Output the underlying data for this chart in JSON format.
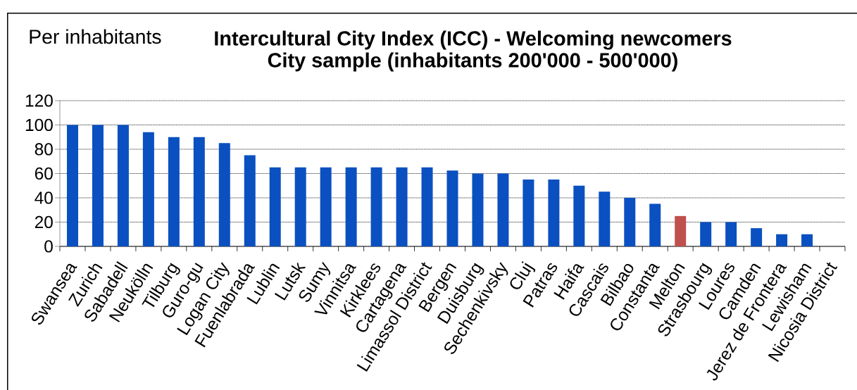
{
  "chart_data": {
    "type": "bar",
    "title": "Intercultural City Index (ICC) - Welcoming newcomers",
    "subtitle": "City sample (inhabitants 200'000 - 500'000)",
    "ylabel": "Per inhabitants",
    "categories": [
      "Swansea",
      "Zurich",
      "Sabadell",
      "Neukölln",
      "Tilburg",
      "Guro-gu",
      "Logan City",
      "Fuenlabrada",
      "Lublin",
      "Lutsk",
      "Sumy",
      "Vinnitsa",
      "Kirklees",
      "Cartagena",
      "Limassol District",
      "Bergen",
      "Duisburg",
      "Sechenkivsky",
      "Cluj",
      "Patras",
      "Haifa",
      "Cascais",
      "Bilbao",
      "Constanta",
      "Melton",
      "Strasbourg",
      "Loures",
      "Camden",
      "Jerez de Frontera",
      "Lewisham",
      "Nicosia District"
    ],
    "values": [
      100,
      100,
      100,
      94,
      90,
      90,
      85,
      75,
      65,
      65,
      65,
      65,
      65,
      65,
      65,
      62.5,
      60,
      60,
      55,
      55,
      50,
      45,
      40,
      35,
      25,
      20,
      20,
      15,
      10,
      10,
      0
    ],
    "colors": [
      "#0a50c0",
      "#0a50c0",
      "#0a50c0",
      "#0a50c0",
      "#0a50c0",
      "#0a50c0",
      "#0a50c0",
      "#0a50c0",
      "#0a50c0",
      "#0a50c0",
      "#0a50c0",
      "#0a50c0",
      "#0a50c0",
      "#0a50c0",
      "#0a50c0",
      "#0a50c0",
      "#0a50c0",
      "#0a50c0",
      "#0a50c0",
      "#0a50c0",
      "#0a50c0",
      "#0a50c0",
      "#0a50c0",
      "#0a50c0",
      "#c0504d",
      "#0a50c0",
      "#0a50c0",
      "#0a50c0",
      "#0a50c0",
      "#0a50c0",
      "#0a50c0"
    ],
    "ylim": [
      0,
      120
    ],
    "yticks": [
      0,
      20,
      40,
      60,
      80,
      100,
      120
    ],
    "grid": "y"
  }
}
